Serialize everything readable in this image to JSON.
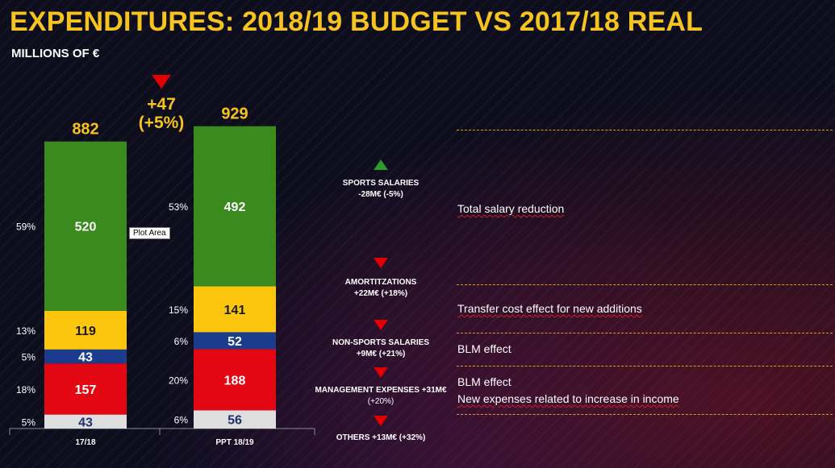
{
  "header": {
    "title": "EXPENDITURES: 2018/19 BUDGET VS 2017/18 REAL",
    "subtitle": "MILLIONS OF €"
  },
  "chart_data": {
    "type": "bar",
    "stacked": true,
    "categories": [
      "17/18",
      "PPT 18/19"
    ],
    "totals": [
      "882",
      "929"
    ],
    "series": [
      {
        "name": "Others",
        "color": "#dedede",
        "text_color": "#1f2f6b",
        "values": [
          43,
          56
        ],
        "percents": [
          "5%",
          "6%"
        ]
      },
      {
        "name": "Management expenses",
        "color": "#e30613",
        "text_color": "#ffffff",
        "values": [
          157,
          188
        ],
        "percents": [
          "18%",
          "20%"
        ]
      },
      {
        "name": "Non-sports salaries",
        "color": "#1b3c8c",
        "text_color": "#ffffff",
        "values": [
          43,
          52
        ],
        "percents": [
          "5%",
          "6%"
        ]
      },
      {
        "name": "Amortizations",
        "color": "#fcc50e",
        "text_color": "#1a1a1a",
        "values": [
          119,
          141
        ],
        "percents": [
          "13%",
          "15%"
        ]
      },
      {
        "name": "Sports salaries",
        "color": "#3a8a1e",
        "text_color": "#ffffff",
        "values": [
          520,
          492
        ],
        "percents": [
          "59%",
          "53%"
        ]
      }
    ],
    "ylim": [
      0,
      960
    ],
    "change": {
      "absolute": "+47",
      "percent": "(+5%)"
    }
  },
  "tooltip": {
    "label": "Plot Area"
  },
  "notes": [
    {
      "direction": "up",
      "label": "SPORTS SALARIES",
      "detail": "-28M€ (-5%)"
    },
    {
      "direction": "down",
      "label": "AMORTITZATIONS",
      "detail": "+22M€ (+18%)"
    },
    {
      "direction": "down",
      "label": "NON-SPORTS SALARIES",
      "detail": "+9M€ (+21%)"
    },
    {
      "direction": "down",
      "label": "MANAGEMENT EXPENSES +31M€",
      "detail": "(+20%)"
    },
    {
      "direction": "down",
      "label": "OTHERS +13M€ (+32%)",
      "detail": ""
    }
  ],
  "effects": [
    {
      "text": "Total salary reduction"
    },
    {
      "text": "Transfer cost effect for new additions"
    },
    {
      "text": "BLM effect"
    },
    {
      "text": "BLM effect",
      "text2": "New expenses related to increase in income"
    }
  ]
}
